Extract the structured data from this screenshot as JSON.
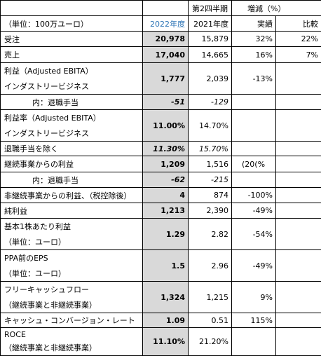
{
  "table": {
    "header": {
      "period": "第2四半期",
      "change": "増減（%）",
      "unit": "（単位：100万ユーロ）",
      "columns": [
        "2022年度",
        "2021年度",
        "実績",
        "比較"
      ]
    },
    "rows": [
      {
        "label": [
          "受注"
        ],
        "cells": [
          "20,978",
          "15,879",
          "32%",
          "22%"
        ]
      },
      {
        "label": [
          "売上"
        ],
        "cells": [
          "17,040",
          "14,665",
          "16%",
          "7%"
        ]
      },
      {
        "label": [
          "利益（Adjusted EBITA）",
          "インダストリービジネス"
        ],
        "cells": [
          "1,777",
          "2,039",
          "-13%",
          null
        ]
      },
      {
        "label": [
          "内：退職手当"
        ],
        "cells": [
          "-51",
          "-129",
          null,
          null
        ]
      },
      {
        "label": [
          "利益率（Adjusted EBITA）",
          "インダストリービジネス"
        ],
        "cells": [
          "11.00%",
          "14.70%",
          null,
          null
        ]
      },
      {
        "label": [
          "退職手当を除く"
        ],
        "cells": [
          "11.30%",
          "15.70%",
          null,
          null
        ]
      },
      {
        "label": [
          "継続事業からの利益"
        ],
        "cells": [
          "1,209",
          "1,516",
          "(20(%",
          null
        ]
      },
      {
        "label": [
          "内：退職手当"
        ],
        "cells": [
          "-62",
          "-215",
          null,
          null
        ]
      },
      {
        "label": [
          "非継続事業からの利益、（税控除後）"
        ],
        "cells": [
          "4",
          "874",
          "-100%",
          null
        ]
      },
      {
        "label": [
          "純利益"
        ],
        "cells": [
          "1,213",
          "2,390",
          "-49%",
          null
        ]
      },
      {
        "label": [
          "基本1株あたり利益",
          "（単位：ユーロ）"
        ],
        "cells": [
          "1.29",
          "2.82",
          "-54%",
          null
        ]
      },
      {
        "label": [
          "PPA前のEPS",
          "（単位：ユーロ）"
        ],
        "cells": [
          "1.5",
          "2.96",
          "-49%",
          null
        ]
      },
      {
        "label": [
          "フリーキャッシュフロー",
          "（継続事業と非継続事業）"
        ],
        "cells": [
          "1,324",
          "1,215",
          "9%",
          null
        ]
      },
      {
        "label": [
          "キャッシュ・コンバージョン・レート"
        ],
        "cells": [
          "1.09",
          "0.51",
          "115%",
          null
        ]
      },
      {
        "label": [
          "ROCE",
          "（継続事業と非継続事業）"
        ],
        "cells": [
          "11.10%",
          "21.20%",
          null,
          null
        ]
      }
    ]
  }
}
